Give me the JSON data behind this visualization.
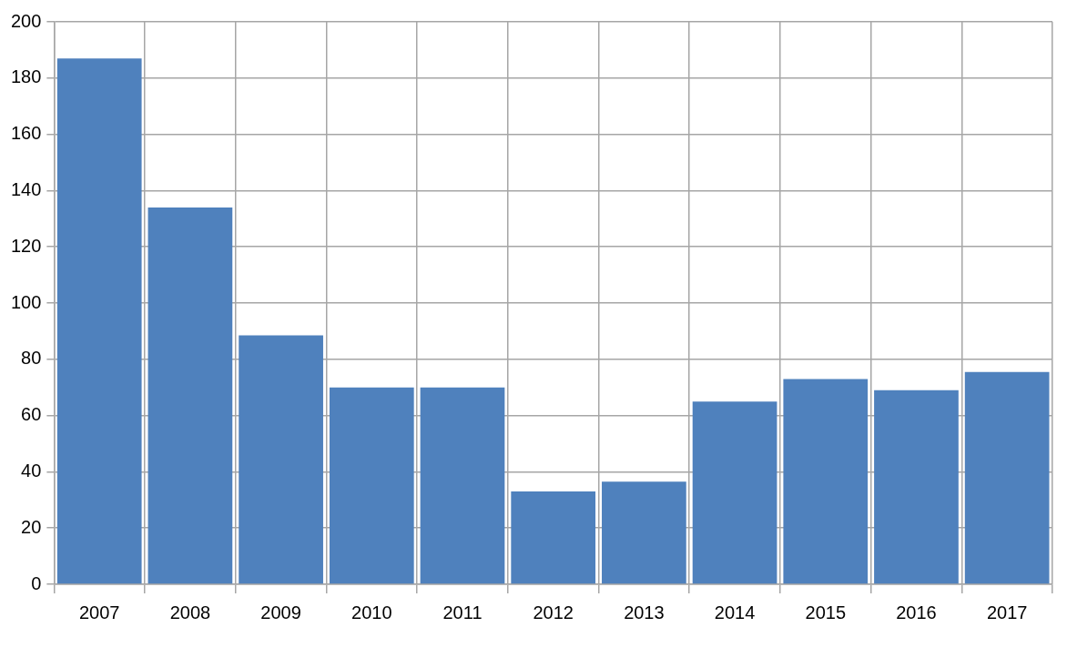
{
  "chart_data": {
    "type": "bar",
    "categories": [
      "2007",
      "2008",
      "2009",
      "2010",
      "2011",
      "2012",
      "2013",
      "2014",
      "2015",
      "2016",
      "2017"
    ],
    "values": [
      187,
      134,
      88.5,
      70,
      70,
      33,
      36.5,
      65,
      73,
      69,
      75.5
    ],
    "color": "#4f81bd",
    "ylim": [
      0,
      200
    ],
    "yticks": [
      0,
      20,
      40,
      60,
      80,
      100,
      120,
      140,
      160,
      180,
      200
    ],
    "grid": true
  }
}
